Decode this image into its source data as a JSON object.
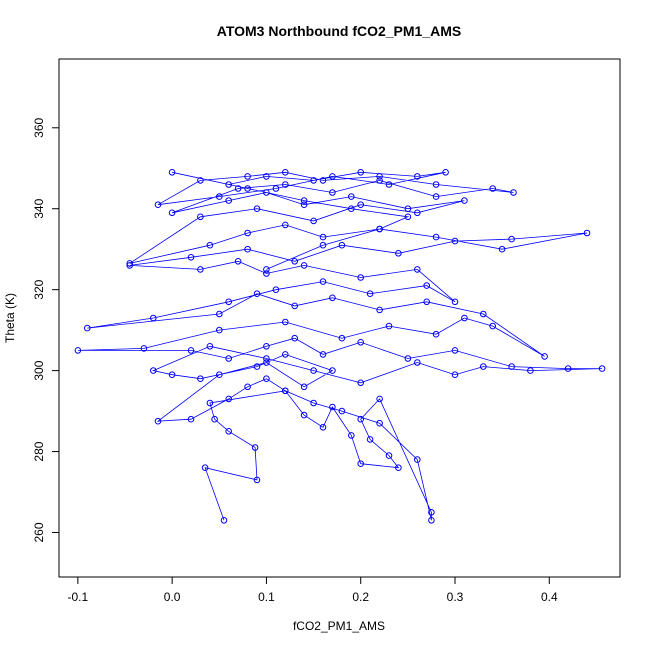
{
  "chart_data": {
    "type": "scatter",
    "title": "ATOM3 Northbound fCO2_PM1_AMS",
    "xlabel": "fCO2_PM1_AMS",
    "ylabel": "Theta (K)",
    "xlim": [
      -0.12,
      0.475
    ],
    "ylim": [
      249,
      377
    ],
    "x_ticks": [
      -0.1,
      0.0,
      0.1,
      0.2,
      0.3,
      0.4
    ],
    "x_tick_labels": [
      "-0.1",
      "0.0",
      "0.1",
      "0.2",
      "0.3",
      "0.4"
    ],
    "y_ticks": [
      260,
      280,
      300,
      320,
      340,
      360
    ],
    "y_tick_labels": [
      "260",
      "280",
      "300",
      "320",
      "340",
      "360"
    ],
    "grid": false,
    "legend": "none",
    "marker": "open-circle",
    "connected": true,
    "series_color": "#0000ff",
    "series": [
      {
        "x": [
          0.055,
          0.035,
          0.09,
          0.088,
          0.06,
          0.045,
          0.04,
          0.12,
          0.14,
          0.16,
          0.17,
          0.19,
          0.2,
          0.24,
          0.23,
          0.21,
          0.2,
          0.22,
          0.275,
          0.275,
          0.26,
          0.22,
          0.18,
          0.15,
          0.12,
          0.1,
          0.08,
          0.06,
          0.02,
          -0.015,
          0.05,
          0.1,
          0.14,
          0.17,
          0.12,
          0.09,
          0.03,
          0.0,
          -0.02,
          0.04,
          0.1,
          0.15,
          0.2,
          0.26,
          0.3,
          0.33,
          0.38,
          0.456,
          0.42,
          0.36,
          0.3,
          0.25,
          0.2,
          0.16,
          0.13,
          0.1,
          0.06,
          0.02,
          -0.1,
          -0.03,
          0.05,
          0.12,
          0.18,
          0.23,
          0.28,
          0.31,
          0.34,
          0.395,
          0.33,
          0.27,
          0.22,
          0.17,
          0.13,
          0.09,
          0.05,
          -0.09,
          -0.02,
          0.06,
          0.11,
          0.16,
          0.21,
          0.27,
          0.3,
          0.26,
          0.2,
          0.14,
          0.1,
          0.07,
          0.03,
          -0.045,
          0.02,
          0.08,
          0.13,
          0.18,
          0.24,
          0.3,
          0.36,
          0.44,
          0.35,
          0.28,
          0.22,
          0.16,
          0.12,
          0.08,
          0.04,
          -0.045,
          0.03,
          0.09,
          0.15,
          0.2,
          0.26,
          0.31,
          0.25,
          0.19,
          0.14,
          0.1,
          0.06,
          0.0,
          0.07,
          0.12,
          0.17,
          0.22,
          0.28,
          0.34,
          0.362,
          0.28,
          0.22,
          0.16,
          0.12,
          0.08,
          0.03,
          -0.015,
          0.05,
          0.11,
          0.17,
          0.23,
          0.29,
          0.26,
          0.2,
          0.15,
          0.1,
          0.06,
          0.0,
          0.08,
          0.14,
          0.19,
          0.25,
          0.22,
          0.16,
          0.1
        ],
        "y": [
          263,
          276,
          273,
          281,
          285,
          288,
          292,
          295,
          289,
          286,
          291,
          284,
          277,
          276,
          279,
          283,
          288,
          293,
          265,
          263,
          278,
          287,
          290,
          292,
          295,
          298,
          296,
          293,
          288,
          287.5,
          299,
          302,
          296,
          300,
          304,
          301,
          298,
          299,
          300,
          306,
          303,
          300,
          297,
          302,
          299,
          301,
          300,
          300.5,
          300.5,
          301,
          305,
          303,
          307,
          304,
          308,
          306,
          303,
          305,
          305,
          305.5,
          310,
          312,
          308,
          311,
          309,
          313,
          311,
          303.5,
          314,
          317,
          315,
          318,
          316,
          319,
          314,
          310.5,
          313,
          317,
          320,
          322,
          319,
          321,
          317,
          325,
          323,
          326,
          324,
          327,
          325,
          326,
          328,
          330,
          327,
          331,
          329,
          332,
          332.5,
          334,
          330,
          333,
          335,
          333,
          336,
          334,
          331,
          326.5,
          338,
          340,
          337,
          341,
          339,
          342,
          340,
          343,
          341,
          344,
          342,
          339,
          345,
          346,
          344,
          347,
          343,
          345,
          344,
          346,
          348,
          347,
          349,
          348,
          347,
          341,
          343,
          345,
          348,
          346,
          349,
          348,
          349,
          347,
          348,
          346,
          349,
          345,
          342,
          340,
          338,
          335,
          331,
          325
        ]
      }
    ]
  }
}
